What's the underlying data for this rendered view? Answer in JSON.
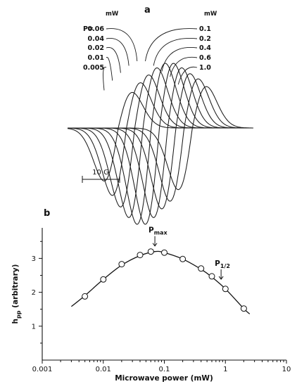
{
  "figure": {
    "panel_a_label": "a",
    "panel_b_label": "b"
  },
  "chart_data": [
    {
      "type": "line",
      "panel": "a",
      "description_kind": "EPR first-derivative spectra recorded at several microwave powers",
      "power_prefix": "P=",
      "unit_left": "mW",
      "unit_right": "mW",
      "left_powers": [
        "0.06",
        "0.04",
        "0.02",
        "0.01",
        "0.005"
      ],
      "right_powers": [
        "0.1",
        "0.2",
        "0.4",
        "0.6",
        "1.0"
      ],
      "series": [
        {
          "power": "0.005",
          "relative_amplitude": 0.55
        },
        {
          "power": "0.01",
          "relative_amplitude": 0.7
        },
        {
          "power": "0.02",
          "relative_amplitude": 0.82
        },
        {
          "power": "0.04",
          "relative_amplitude": 0.93
        },
        {
          "power": "0.06",
          "relative_amplitude": 1.0
        },
        {
          "power": "0.1",
          "relative_amplitude": 1.0
        },
        {
          "power": "0.2",
          "relative_amplitude": 0.93
        },
        {
          "power": "0.4",
          "relative_amplitude": 0.84
        },
        {
          "power": "0.6",
          "relative_amplitude": 0.76
        },
        {
          "power": "1.0",
          "relative_amplitude": 0.64
        }
      ],
      "scale_bar_label": "10 G"
    },
    {
      "type": "scatter",
      "panel": "b",
      "xlabel": "Microwave power (mW)",
      "ylabel_main": "h",
      "ylabel_sub": "pp",
      "ylabel_rest": " (arbitrary)",
      "x_scale": "log",
      "xlim": [
        0.001,
        10
      ],
      "ylim": [
        0,
        3.9
      ],
      "x_ticks": [
        0.001,
        0.01,
        0.1,
        1,
        10
      ],
      "x_tick_labels": [
        "0.001",
        "0.01",
        "0.1",
        "1",
        "10"
      ],
      "y_ticks": [
        1,
        2,
        3
      ],
      "y_tick_labels": [
        "1",
        "2",
        "3"
      ],
      "points": [
        {
          "x": 0.005,
          "y": 1.88
        },
        {
          "x": 0.01,
          "y": 2.38
        },
        {
          "x": 0.02,
          "y": 2.83
        },
        {
          "x": 0.04,
          "y": 3.1
        },
        {
          "x": 0.06,
          "y": 3.2
        },
        {
          "x": 0.1,
          "y": 3.17
        },
        {
          "x": 0.2,
          "y": 2.98
        },
        {
          "x": 0.4,
          "y": 2.7
        },
        {
          "x": 0.6,
          "y": 2.47
        },
        {
          "x": 1.0,
          "y": 2.1
        },
        {
          "x": 2.0,
          "y": 1.52
        }
      ],
      "fit_curve": [
        {
          "x": 0.003,
          "y": 1.58
        },
        {
          "x": 0.005,
          "y": 1.9
        },
        {
          "x": 0.01,
          "y": 2.38
        },
        {
          "x": 0.02,
          "y": 2.8
        },
        {
          "x": 0.04,
          "y": 3.08
        },
        {
          "x": 0.07,
          "y": 3.2
        },
        {
          "x": 0.1,
          "y": 3.17
        },
        {
          "x": 0.2,
          "y": 2.98
        },
        {
          "x": 0.4,
          "y": 2.68
        },
        {
          "x": 0.6,
          "y": 2.45
        },
        {
          "x": 1.0,
          "y": 2.1
        },
        {
          "x": 2.0,
          "y": 1.52
        },
        {
          "x": 2.5,
          "y": 1.36
        }
      ],
      "annotations": [
        {
          "main": "P",
          "sub": "max",
          "x": 0.07,
          "y": 3.2
        },
        {
          "main": "P",
          "sub": "1/2",
          "x": 0.85,
          "y": 2.22
        }
      ],
      "grid": false,
      "legend": "none"
    }
  ]
}
